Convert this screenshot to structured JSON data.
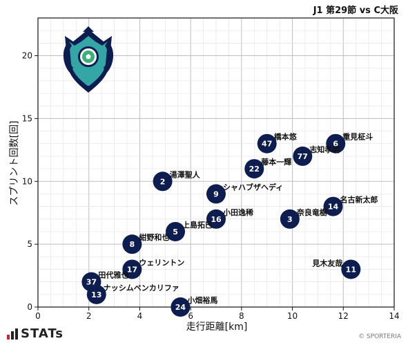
{
  "header": {
    "match_title": "J1 第29節 vs C大阪"
  },
  "brand": {
    "logo_text": "STATs",
    "copyright": "© SPORTERIA"
  },
  "colors": {
    "marker": "#0d1d4f",
    "marker_text": "#ffffff",
    "grid": "#cfcfcf",
    "axis": "#111111"
  },
  "chart_data": {
    "type": "scatter",
    "title": "",
    "xlabel": "走行距離[km]",
    "ylabel": "スプリント回数[回]",
    "xlim": [
      0,
      14
    ],
    "ylim": [
      0,
      23
    ],
    "xticks": [
      0,
      2,
      4,
      6,
      8,
      10,
      12,
      14
    ],
    "yticks": [
      0,
      5,
      10,
      15,
      20
    ],
    "grid": true,
    "points": [
      {
        "number": "47",
        "name": "橋本悠",
        "x": 9.0,
        "y": 13
      },
      {
        "number": "6",
        "name": "重見柾斗",
        "x": 11.7,
        "y": 13
      },
      {
        "number": "77",
        "name": "志知孝明",
        "x": 10.4,
        "y": 12
      },
      {
        "number": "22",
        "name": "藤本一輝",
        "x": 8.5,
        "y": 11
      },
      {
        "number": "2",
        "name": "湯澤聖人",
        "x": 4.9,
        "y": 10
      },
      {
        "number": "9",
        "name": "シャハブザヘディ",
        "x": 7.0,
        "y": 9
      },
      {
        "number": "14",
        "name": "名古新太郎",
        "x": 11.6,
        "y": 8
      },
      {
        "number": "16",
        "name": "小田逸稀",
        "x": 7.0,
        "y": 7
      },
      {
        "number": "3",
        "name": "奈良竜樹",
        "x": 9.9,
        "y": 7
      },
      {
        "number": "5",
        "name": "上島拓巳",
        "x": 5.4,
        "y": 6
      },
      {
        "number": "8",
        "name": "紺野和也",
        "x": 3.7,
        "y": 5
      },
      {
        "number": "17",
        "name": "ウェリントン",
        "x": 3.7,
        "y": 3
      },
      {
        "number": "11",
        "name": "見木友哉",
        "x": 12.3,
        "y": 3
      },
      {
        "number": "37",
        "name": "田代雅也",
        "x": 2.1,
        "y": 2
      },
      {
        "number": "13",
        "name": "ナッシムベンカリファ",
        "x": 2.3,
        "y": 1
      },
      {
        "number": "24",
        "name": "小畑裕馬",
        "x": 5.6,
        "y": 0
      }
    ]
  }
}
